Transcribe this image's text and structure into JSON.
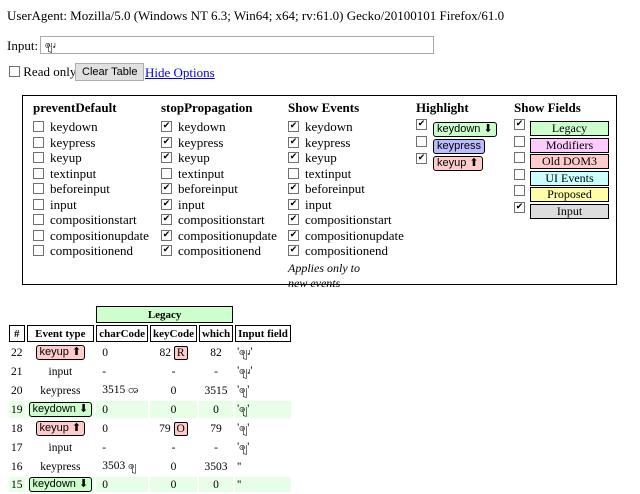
{
  "useragent": "UserAgent: Mozilla/5.0 (Windows NT 6.3; Win64; x64; rv:61.0) Gecko/20100101 Firefox/61.0",
  "input": {
    "label": "Input:",
    "value": "ၛၧ"
  },
  "controls": {
    "readonly_label": "Read only",
    "readonly_checked": false,
    "clear_label": "Clear Table",
    "hide_label": "Hide Options"
  },
  "prevent_default": {
    "title": "preventDefault",
    "items": [
      {
        "label": "keydown",
        "checked": false
      },
      {
        "label": "keypress",
        "checked": false
      },
      {
        "label": "keyup",
        "checked": false
      },
      {
        "label": "textinput",
        "checked": false
      },
      {
        "label": "beforeinput",
        "checked": false
      },
      {
        "label": "input",
        "checked": false
      },
      {
        "label": "compositionstart",
        "checked": false
      },
      {
        "label": "compositionupdate",
        "checked": false
      },
      {
        "label": "compositionend",
        "checked": false
      }
    ]
  },
  "stop_propagation": {
    "title": "stopPropagation",
    "items": [
      {
        "label": "keydown",
        "checked": true
      },
      {
        "label": "keypress",
        "checked": true
      },
      {
        "label": "keyup",
        "checked": true
      },
      {
        "label": "textinput",
        "checked": false
      },
      {
        "label": "beforeinput",
        "checked": true
      },
      {
        "label": "input",
        "checked": true
      },
      {
        "label": "compositionstart",
        "checked": true
      },
      {
        "label": "compositionupdate",
        "checked": true
      },
      {
        "label": "compositionend",
        "checked": true
      }
    ]
  },
  "show_events": {
    "title": "Show Events",
    "items": [
      {
        "label": "keydown",
        "checked": true
      },
      {
        "label": "keypress",
        "checked": true
      },
      {
        "label": "keyup",
        "checked": true
      },
      {
        "label": "textinput",
        "checked": false
      },
      {
        "label": "beforeinput",
        "checked": true
      },
      {
        "label": "input",
        "checked": true
      },
      {
        "label": "compositionstart",
        "checked": true
      },
      {
        "label": "compositionupdate",
        "checked": true
      },
      {
        "label": "compositionend",
        "checked": true
      }
    ],
    "note_line1": "Applies only to",
    "note_line2": "new events"
  },
  "highlight": {
    "title": "Highlight",
    "items": [
      {
        "label": "keydown ⬇",
        "checked": true,
        "color": "#ccffcc"
      },
      {
        "label": "keypress",
        "checked": false,
        "color": "#bbbbff"
      },
      {
        "label": "keyup ⬆",
        "checked": true,
        "color": "#ffcccc"
      }
    ]
  },
  "show_fields": {
    "title": "Show Fields",
    "items": [
      {
        "label": "Legacy",
        "checked": true,
        "color": "#ccffcc"
      },
      {
        "label": "Modifiers",
        "checked": false,
        "color": "#ffccff"
      },
      {
        "label": "Old DOM3",
        "checked": false,
        "color": "#ffcccc"
      },
      {
        "label": "UI Events",
        "checked": false,
        "color": "#ccffff"
      },
      {
        "label": "Proposed",
        "checked": false,
        "color": "#ffffaa"
      },
      {
        "label": "Input",
        "checked": true,
        "color": "#dddddd"
      }
    ]
  },
  "table": {
    "group_label": "Legacy",
    "headers": [
      "#",
      "Event type",
      "charCode",
      "keyCode",
      "which",
      "Input field"
    ],
    "rows": [
      {
        "num": "22",
        "type": "keyup ⬆",
        "kind": "up",
        "char": "0",
        "key": "82",
        "keychar": "R",
        "which": "82",
        "field": "'ၛၧ'"
      },
      {
        "num": "21",
        "type": "input",
        "kind": "",
        "char": "-",
        "key": "-",
        "keychar": "",
        "which": "-",
        "field": "'ၛၧ'"
      },
      {
        "num": "20",
        "type": "keypress",
        "kind": "",
        "char": "3515 ၻ",
        "key": "0",
        "keychar": "",
        "which": "3515",
        "field": "'ၛ'"
      },
      {
        "num": "19",
        "type": "keydown ⬇",
        "kind": "down",
        "char": "0",
        "key": "0",
        "keychar": "",
        "which": "0",
        "field": "'ၛ'"
      },
      {
        "num": "18",
        "type": "keyup ⬆",
        "kind": "up",
        "char": "0",
        "key": "79",
        "keychar": "O",
        "which": "79",
        "field": "'ၛ'"
      },
      {
        "num": "17",
        "type": "input",
        "kind": "",
        "char": "-",
        "key": "-",
        "keychar": "",
        "which": "-",
        "field": "'ၛ'"
      },
      {
        "num": "16",
        "type": "keypress",
        "kind": "",
        "char": "3503 ၛ",
        "key": "0",
        "keychar": "",
        "which": "3503",
        "field": "''"
      },
      {
        "num": "15",
        "type": "keydown ⬇",
        "kind": "down",
        "char": "0",
        "key": "0",
        "keychar": "",
        "which": "0",
        "field": "''"
      }
    ]
  }
}
